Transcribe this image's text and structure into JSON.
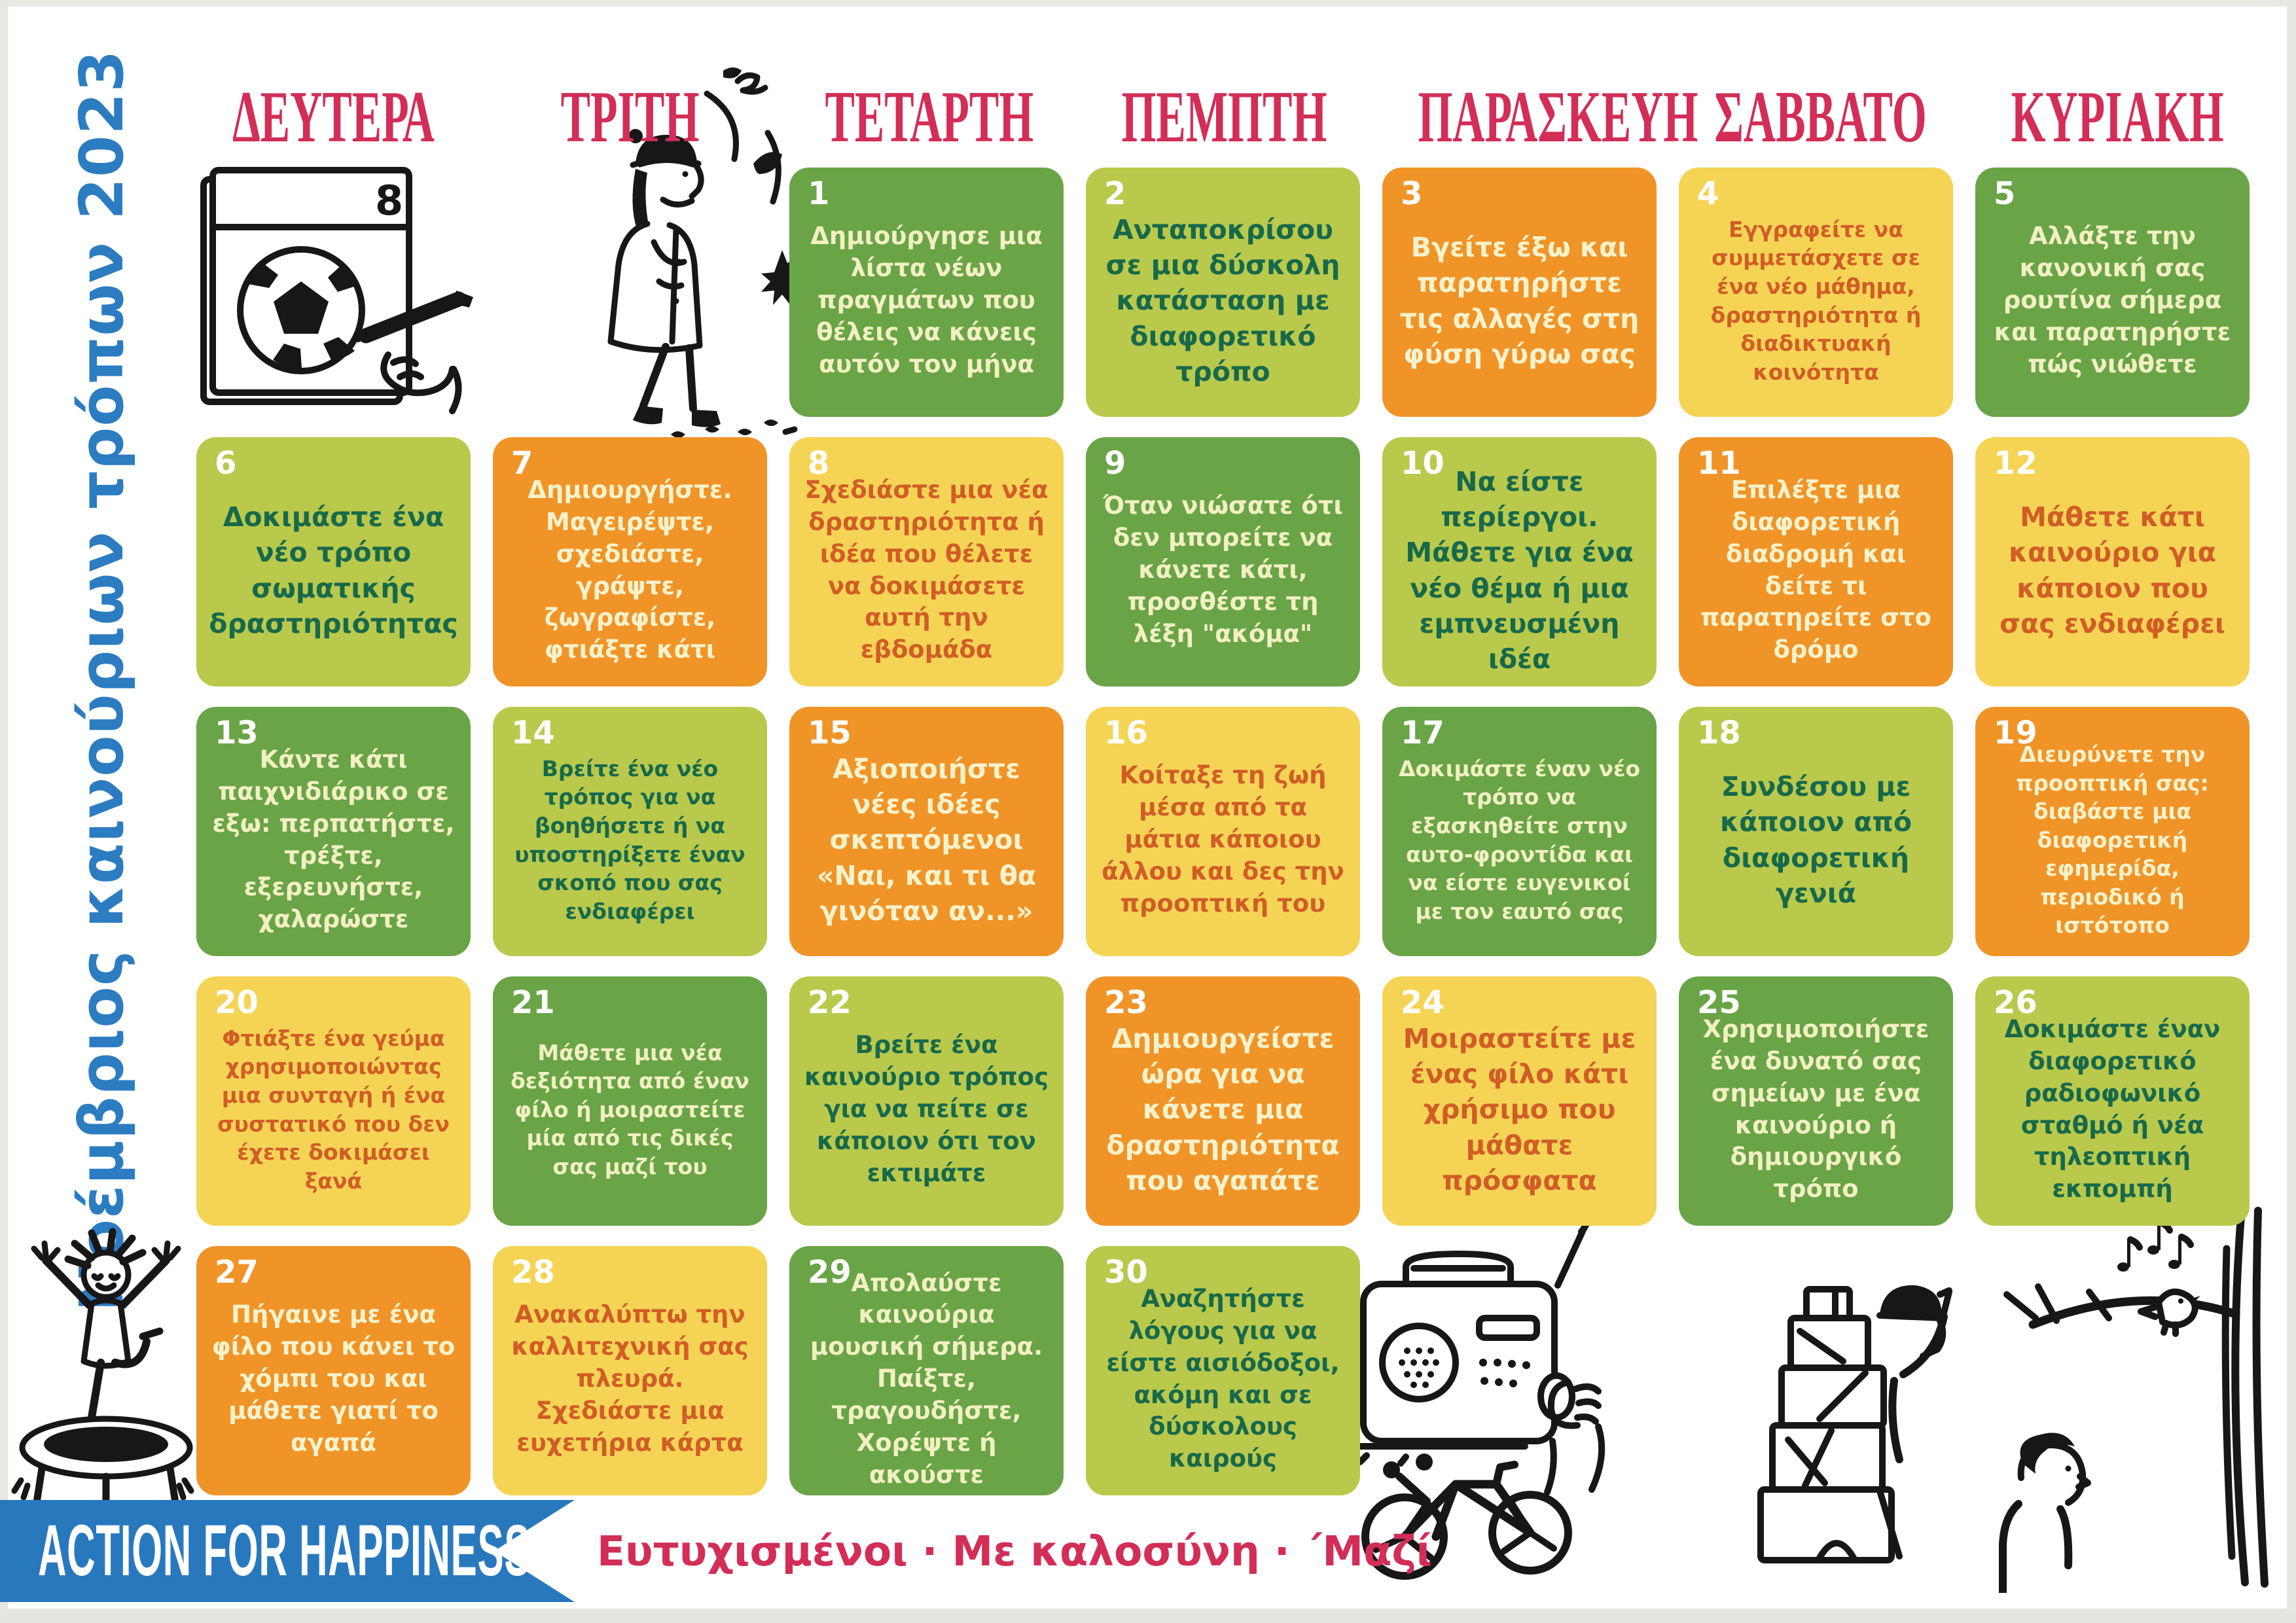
{
  "title_vertical": "Νοέμβριος καινούριων τρόπων 2023",
  "day_headers": [
    "ΔΕΥΤΕΡΑ",
    "ΤΡΙΤΗ",
    "ΤΕΤΑΡΤΗ",
    "ΠΕΜΠΤΗ",
    "ΠΑΡΑΣΚΕΥΗ",
    "ΣΑΒΒΑΤΟ",
    "ΚΥΡΙΑΚΗ"
  ],
  "footer": {
    "brand": "ACTION FOR HAPPINESS",
    "tagline": "Ευτυχισμένοι · Με καλοσύνη · ΄Μαζί"
  },
  "palette": {
    "green": {
      "bg": "#69a447",
      "text": "#f2f0c2"
    },
    "lime": {
      "bg": "#b9c94c",
      "text": "#17694a"
    },
    "orange": {
      "bg": "#f09428",
      "text": "#f6f2cb"
    },
    "yellow": {
      "bg": "#f5d455",
      "text": "#d15d26"
    },
    "number_white": "#ffffff",
    "header_crimson": "#d22e57",
    "tagline_crimson": "#d22e57",
    "title_blue": "#2b7cc1",
    "banner_blue": "#2878be",
    "ink": "#171717"
  },
  "doodles": [
    "calendar-football",
    "autumn-walk-leaves",
    "trampoline-jump",
    "radio-hand",
    "bicycle",
    "block-tower-builder",
    "bird-on-branch-listener"
  ],
  "cells": [
    {
      "day": 1,
      "col": 3,
      "row": 1,
      "variant": "green",
      "text": "Δημιούργησε μια λίστα νέων πραγμάτων που θέλεις να κάνεις αυτόν τον μήνα"
    },
    {
      "day": 2,
      "col": 4,
      "row": 1,
      "variant": "lime",
      "text": "Ανταποκρίσου σε μια δύσκολη κατάσταση με διαφορετικό τρόπο"
    },
    {
      "day": 3,
      "col": 5,
      "row": 1,
      "variant": "orange",
      "text": "Βγείτε έξω και παρατηρήστε τις αλλαγές στη φύση γύρω σας"
    },
    {
      "day": 4,
      "col": 6,
      "row": 1,
      "variant": "yellow",
      "text": "Εγγραφείτε να συμμετάσχετε σε ένα νέο μάθημα, δραστηριότητα ή διαδικτυακή κοινότητα"
    },
    {
      "day": 5,
      "col": 7,
      "row": 1,
      "variant": "green",
      "text": "Αλλάξτε την κανονική σας ρουτίνα σήμερα και παρατηρήστε πώς νιώθετε"
    },
    {
      "day": 6,
      "col": 1,
      "row": 2,
      "variant": "lime",
      "text": "Δοκιμάστε ένα νέο τρόπο σωματικής δραστηριότητας"
    },
    {
      "day": 7,
      "col": 2,
      "row": 2,
      "variant": "orange",
      "text": "Δημιουργήστε. Μαγειρέψτε, σχεδιάστε, γράψτε, ζωγραφίστε, φτιάξτε κάτι"
    },
    {
      "day": 8,
      "col": 3,
      "row": 2,
      "variant": "yellow",
      "text": "Σχεδιάστε μια νέα δραστηριότητα ή ιδέα που θέλετε να δοκιμάσετε αυτή την εβδομάδα"
    },
    {
      "day": 9,
      "col": 4,
      "row": 2,
      "variant": "green",
      "text": "Όταν νιώσατε ότι δεν μπορείτε να κάνετε κάτι, προσθέστε τη λέξη \"ακόμα\""
    },
    {
      "day": 10,
      "col": 5,
      "row": 2,
      "variant": "lime",
      "text": "Να είστε περίεργοι. Μάθετε για ένα νέο θέμα ή μια εμπνευσμένη ιδέα"
    },
    {
      "day": 11,
      "col": 6,
      "row": 2,
      "variant": "orange",
      "text": "Επιλέξτε μια διαφορετική διαδρομή και δείτε τι παρατηρείτε στο δρόμο"
    },
    {
      "day": 12,
      "col": 7,
      "row": 2,
      "variant": "yellow",
      "text": "Μάθετε κάτι καινούριο για κάποιον που σας ενδιαφέρει"
    },
    {
      "day": 13,
      "col": 1,
      "row": 3,
      "variant": "green",
      "text": "Κάντε κάτι παιχνιδιάρικο σε εξω: περπατήστε, τρέξτε, εξερευνήστε, χαλαρώστε"
    },
    {
      "day": 14,
      "col": 2,
      "row": 3,
      "variant": "lime",
      "text": "Βρείτε ένα νέο τρόπος για να βοηθήσετε ή να υποστηρίξετε έναν σκοπό που σας ενδιαφέρει"
    },
    {
      "day": 15,
      "col": 3,
      "row": 3,
      "variant": "orange",
      "text": "Αξιοποιήστε νέες ιδέες σκεπτόμενοι «Ναι, και τι θα γινόταν αν...»"
    },
    {
      "day": 16,
      "col": 4,
      "row": 3,
      "variant": "yellow",
      "text": "Κοίταξε τη ζωή μέσα από τα μάτια κάποιου άλλου και δες την προοπτική του"
    },
    {
      "day": 17,
      "col": 5,
      "row": 3,
      "variant": "green",
      "text": "Δοκιμάστε έναν νέο τρόπο να εξασκηθείτε στην αυτο-φροντίδα και να είστε ευγενικοί με τον εαυτό σας"
    },
    {
      "day": 18,
      "col": 6,
      "row": 3,
      "variant": "lime",
      "text": "Συνδέσου με κάποιον από διαφορετική γενιά"
    },
    {
      "day": 19,
      "col": 7,
      "row": 3,
      "variant": "orange",
      "text": "Διευρύνετε την προοπτική σας: διαβάστε μια διαφορετική εφημερίδα, περιοδικό ή ιστότοπο"
    },
    {
      "day": 20,
      "col": 1,
      "row": 4,
      "variant": "yellow",
      "text": "Φτιάξτε ένα γεύμα χρησιμοποιώντας μια συνταγή ή ένα συστατικό που δεν έχετε δοκιμάσει ξανά"
    },
    {
      "day": 21,
      "col": 2,
      "row": 4,
      "variant": "green",
      "text": "Μάθετε μια νέα δεξιότητα από έναν φίλο ή μοιραστείτε μία από τις δικές σας μαζί του"
    },
    {
      "day": 22,
      "col": 3,
      "row": 4,
      "variant": "lime",
      "text": "Βρείτε ένα καινούριο τρόπος για να πείτε σε κάποιον ότι τον εκτιμάτε"
    },
    {
      "day": 23,
      "col": 4,
      "row": 4,
      "variant": "orange",
      "text": "Δημιουργείστε ώρα για να κάνετε μια δραστηριότητα που αγαπάτε"
    },
    {
      "day": 24,
      "col": 5,
      "row": 4,
      "variant": "yellow",
      "text": "Μοιραστείτε με ένας φίλο κάτι χρήσιμο που μάθατε πρόσφατα"
    },
    {
      "day": 25,
      "col": 6,
      "row": 4,
      "variant": "green",
      "text": "Χρησιμοποιήστε ένα δυνατό σας σημείων με ένα καινούριο ή δημιουργικό τρόπο"
    },
    {
      "day": 26,
      "col": 7,
      "row": 4,
      "variant": "lime",
      "text": "Δοκιμάστε έναν διαφορετικό ραδιοφωνικό σταθμό ή νέα τηλεοπτική εκπομπή"
    },
    {
      "day": 27,
      "col": 1,
      "row": 5,
      "variant": "orange",
      "text": "Πήγαινε με ένα φίλο που κάνει το χόμπι του και μάθετε γιατί το αγαπά"
    },
    {
      "day": 28,
      "col": 2,
      "row": 5,
      "variant": "yellow",
      "text": "Ανακαλύπτω την καλλιτεχνική σας πλευρά. Σχεδιάστε  μια ευχετήρια κάρτα"
    },
    {
      "day": 29,
      "col": 3,
      "row": 5,
      "variant": "green",
      "text": "Απολαύστε καινούρια μουσική σήμερα. Παίξτε, τραγουδήστε, Χορέψτε ή ακούστε"
    },
    {
      "day": 30,
      "col": 4,
      "row": 5,
      "variant": "lime",
      "text": "Αναζητήστε λόγους για να είστε αισιόδοξοι, ακόμη και σε δύσκολους καιρούς"
    }
  ]
}
